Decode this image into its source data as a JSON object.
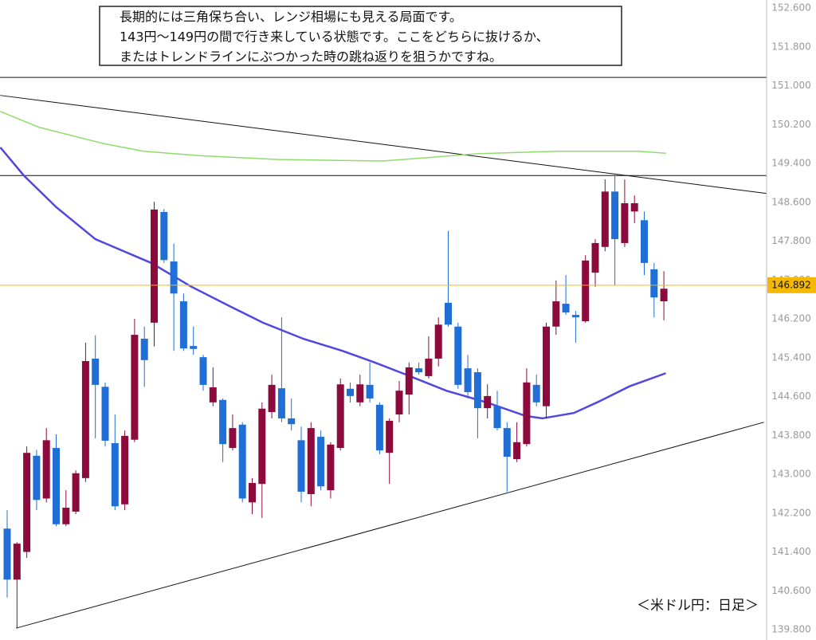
{
  "chart_data": {
    "type": "candlestick",
    "annotation": [
      "長期的には三角保ち合い、レンジ相場にも見える局面です。",
      "143円～149円の間で行き来している状態です。ここをどちらに抜けるか、",
      "またはトレンドラインにぶつかった時の跳ね返りを狙うかですね。"
    ],
    "caption": "＜米ドル円：日足＞",
    "ylim": [
      139.8,
      152.6
    ],
    "yticks": [
      {
        "value": 152.6,
        "label": "152.600"
      },
      {
        "value": 151.8,
        "label": "151.800"
      },
      {
        "value": 151.0,
        "label": "151.000"
      },
      {
        "value": 150.2,
        "label": "150.200"
      },
      {
        "value": 149.4,
        "label": "149.400"
      },
      {
        "value": 148.6,
        "label": "148.600"
      },
      {
        "value": 147.8,
        "label": "147.800"
      },
      {
        "value": 147.0,
        "label": "147.000"
      },
      {
        "value": 146.2,
        "label": "146.200"
      },
      {
        "value": 145.4,
        "label": "145.400"
      },
      {
        "value": 144.6,
        "label": "144.600"
      },
      {
        "value": 143.8,
        "label": "143.800"
      },
      {
        "value": 143.0,
        "label": "143.000"
      },
      {
        "value": 142.2,
        "label": "142.200"
      },
      {
        "value": 141.4,
        "label": "141.400"
      },
      {
        "value": 140.6,
        "label": "140.600"
      },
      {
        "value": 139.8,
        "label": "139.800"
      }
    ],
    "up_color": "#8c0b3c",
    "down_color": "#1f6fd6",
    "candles": {
      "open": [
        141.88,
        140.83,
        141.4,
        143.38,
        142.5,
        143.54,
        141.97,
        142.23,
        142.92,
        145.38,
        144.8,
        143.64,
        142.38,
        143.71,
        145.79,
        146.12,
        148.4,
        147.38,
        146.56,
        145.64,
        145.41,
        144.48,
        144.53,
        143.54,
        144.02,
        142.42,
        142.8,
        144.28,
        144.77,
        144.15,
        143.7,
        142.59,
        143.77,
        142.67,
        143.54,
        144.76,
        144.48,
        144.84,
        144.43,
        143.44,
        144.23,
        144.64,
        145.18,
        145.02,
        145.38,
        146.53,
        146.04,
        145.18,
        145.1,
        144.36,
        144.4,
        143.95,
        143.31,
        143.62,
        144.84,
        144.4,
        146.04,
        146.51,
        146.28,
        146.15,
        147.15,
        147.68,
        148.82,
        147.76,
        148.41,
        148.23,
        147.22,
        146.56
      ],
      "high": [
        142.26,
        141.6,
        143.57,
        143.5,
        143.95,
        143.82,
        142.67,
        143.08,
        145.71,
        145.86,
        144.89,
        144.23,
        143.9,
        146.2,
        146.04,
        148.61,
        148.46,
        147.75,
        146.72,
        146.04,
        145.46,
        145.2,
        144.56,
        144.23,
        144.07,
        142.92,
        144.48,
        145.05,
        146.23,
        144.56,
        143.98,
        144.07,
        143.9,
        143.66,
        144.97,
        144.89,
        145.05,
        145.3,
        144.48,
        144.15,
        144.92,
        145.3,
        145.3,
        145.84,
        146.23,
        148.01,
        146.12,
        145.46,
        145.18,
        144.85,
        144.72,
        144.07,
        144.07,
        145.18,
        145.05,
        146.12,
        146.99,
        147.1,
        146.36,
        147.51,
        147.84,
        149.07,
        149.15,
        149.07,
        148.74,
        148.41,
        147.35,
        147.18
      ],
      "low": [
        140.46,
        139.83,
        141.28,
        142.26,
        142.42,
        141.93,
        141.93,
        142.18,
        142.84,
        143.74,
        143.57,
        142.26,
        142.26,
        143.66,
        144.8,
        145.63,
        147.35,
        145.54,
        145.54,
        145.46,
        144.72,
        144.4,
        143.25,
        143.49,
        142.42,
        142.18,
        142.1,
        144.15,
        144.07,
        143.9,
        142.42,
        142.34,
        142.67,
        142.5,
        143.49,
        144.48,
        144.4,
        144.48,
        143.41,
        142.8,
        144.07,
        144.23,
        145.05,
        144.97,
        145.22,
        146.04,
        144.76,
        144.56,
        143.74,
        144.15,
        143.9,
        142.64,
        143.25,
        143.57,
        144.4,
        144.15,
        145.87,
        146.28,
        145.71,
        146.12,
        146.86,
        147.59,
        146.89,
        147.68,
        148.17,
        147.1,
        146.23,
        146.17
      ],
      "close": [
        140.83,
        141.57,
        143.44,
        142.47,
        143.7,
        141.97,
        142.31,
        143.02,
        145.33,
        144.84,
        143.69,
        142.34,
        143.79,
        145.87,
        145.35,
        148.45,
        147.41,
        146.72,
        145.59,
        145.58,
        144.84,
        144.79,
        143.62,
        143.95,
        142.5,
        142.82,
        144.35,
        144.84,
        144.15,
        144.03,
        142.64,
        143.95,
        142.75,
        143.61,
        144.85,
        144.61,
        144.85,
        144.56,
        143.49,
        144.1,
        144.72,
        145.2,
        145.1,
        145.38,
        146.08,
        146.08,
        144.84,
        144.69,
        144.36,
        144.61,
        143.95,
        143.36,
        143.66,
        144.89,
        144.48,
        146.04,
        146.56,
        146.33,
        146.23,
        147.4,
        147.76,
        148.82,
        147.84,
        148.58,
        148.58,
        147.35,
        146.64,
        146.82
      ]
    },
    "moving_averages": [
      {
        "color": "#8fdc6a",
        "x": [
          -0.7,
          3.3,
          9.8,
          13.9,
          19.6,
          27.7,
          38.3,
          42.4,
          48.0,
          56.2,
          64.3,
          67.2
        ],
        "values": [
          150.47,
          150.14,
          149.81,
          149.65,
          149.56,
          149.48,
          149.45,
          149.51,
          149.6,
          149.65,
          149.65,
          149.61
        ]
      },
      {
        "color": "#5046e0",
        "x": [
          -0.7,
          1.7,
          5.0,
          9.0,
          14.7,
          18.8,
          22.8,
          26.1,
          30.2,
          34.2,
          37.5,
          40.7,
          44.8,
          48.9,
          52.9,
          54.6,
          57.8,
          60.2,
          63.5,
          67.2
        ],
        "values": [
          149.73,
          149.15,
          148.5,
          147.84,
          147.35,
          146.86,
          146.45,
          146.12,
          145.79,
          145.54,
          145.3,
          145.05,
          144.72,
          144.48,
          144.2,
          144.15,
          144.26,
          144.48,
          144.81,
          145.08
        ]
      }
    ],
    "horizontal_lines": [
      151.17,
      149.15
    ],
    "trendlines": [
      {
        "x": [
          -0.7,
          77.5
        ],
        "values": [
          150.8,
          148.78
        ]
      },
      {
        "x": [
          0.9,
          77.2
        ],
        "values": [
          139.83,
          144.07
        ]
      }
    ],
    "current_price": 146.892,
    "current_price_color": "#f5b800"
  }
}
